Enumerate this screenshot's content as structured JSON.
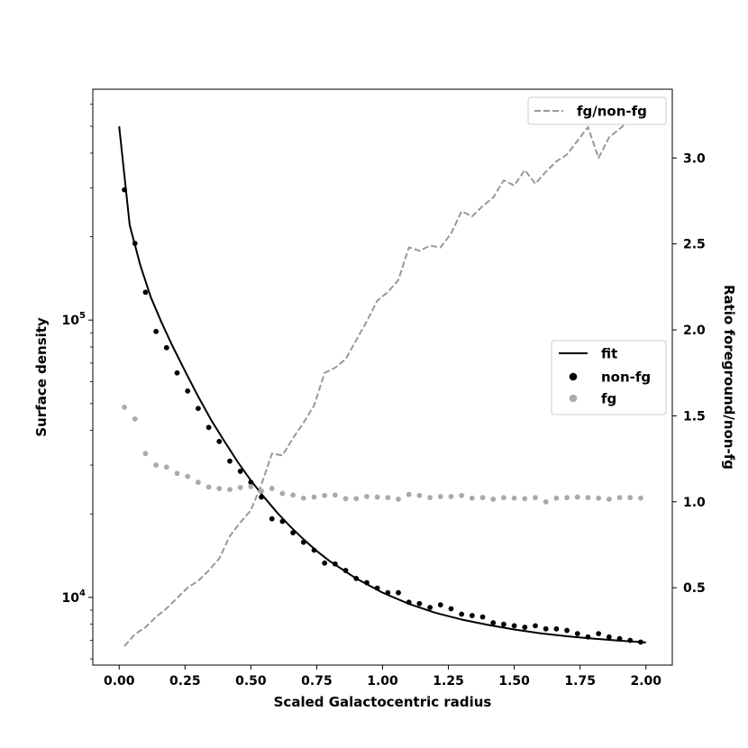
{
  "chart_data": {
    "type": "scatter",
    "xlabel": "Scaled Galactocentric radius",
    "ylabel": "Surface density",
    "y2label": "Ratio foreground/non-fg",
    "yscale": "log",
    "xlim": [
      -0.1,
      2.1
    ],
    "ylim": [
      5700,
      680000
    ],
    "y2lim": [
      0.05,
      3.4
    ],
    "x_ticks": [
      {
        "value": 0.0,
        "label": "0.00"
      },
      {
        "value": 0.25,
        "label": "0.25"
      },
      {
        "value": 0.5,
        "label": "0.50"
      },
      {
        "value": 0.75,
        "label": "0.75"
      },
      {
        "value": 1.0,
        "label": "1.00"
      },
      {
        "value": 1.25,
        "label": "1.25"
      },
      {
        "value": 1.5,
        "label": "1.50"
      },
      {
        "value": 1.75,
        "label": "1.75"
      },
      {
        "value": 2.0,
        "label": "2.00"
      }
    ],
    "y_ticks": [
      {
        "value": 10000,
        "base": "10",
        "exp": "4"
      },
      {
        "value": 100000,
        "base": "10",
        "exp": "5"
      }
    ],
    "y2_ticks": [
      {
        "value": 0.5,
        "label": "0.5"
      },
      {
        "value": 1.0,
        "label": "1.0"
      },
      {
        "value": 1.5,
        "label": "1.5"
      },
      {
        "value": 2.0,
        "label": "2.0"
      },
      {
        "value": 2.5,
        "label": "2.5"
      },
      {
        "value": 3.0,
        "label": "3.0"
      }
    ],
    "legend_main": {
      "placement": "center-right",
      "entries": [
        {
          "label": "fit",
          "kind": "line",
          "color": "#000000"
        },
        {
          "label": "non-fg",
          "kind": "dot",
          "color": "#000000"
        },
        {
          "label": "fg",
          "kind": "dot",
          "color": "#aaaaaa"
        }
      ]
    },
    "legend_ratio": {
      "placement": "top-right",
      "entries": [
        {
          "label": "fg/non-fg",
          "kind": "dashed",
          "color": "#999999"
        }
      ]
    },
    "series": [
      {
        "name": "fit",
        "kind": "line",
        "axis": "left",
        "color": "#000000",
        "x": [
          0.0,
          0.04,
          0.08,
          0.12,
          0.16,
          0.2,
          0.25,
          0.3,
          0.35,
          0.4,
          0.45,
          0.5,
          0.55,
          0.6,
          0.65,
          0.7,
          0.75,
          0.8,
          0.9,
          1.0,
          1.1,
          1.2,
          1.3,
          1.4,
          1.5,
          1.6,
          1.7,
          1.8,
          1.9,
          2.0
        ],
        "y": [
          500000,
          220000,
          158000,
          121000,
          98500,
          81500,
          65500,
          53000,
          43500,
          36500,
          30800,
          26400,
          23000,
          20200,
          18000,
          16200,
          14700,
          13500,
          11700,
          10400,
          9480,
          8800,
          8320,
          7960,
          7660,
          7420,
          7240,
          7100,
          6980,
          6880
        ]
      },
      {
        "name": "non-fg",
        "kind": "dots",
        "axis": "left",
        "color": "#000000",
        "x": [
          0.02,
          0.06,
          0.1,
          0.14,
          0.18,
          0.22,
          0.26,
          0.3,
          0.34,
          0.38,
          0.42,
          0.46,
          0.5,
          0.54,
          0.58,
          0.62,
          0.66,
          0.7,
          0.74,
          0.78,
          0.82,
          0.86,
          0.9,
          0.94,
          0.98,
          1.02,
          1.06,
          1.1,
          1.14,
          1.18,
          1.22,
          1.26,
          1.3,
          1.34,
          1.38,
          1.42,
          1.46,
          1.5,
          1.54,
          1.58,
          1.62,
          1.66,
          1.7,
          1.74,
          1.78,
          1.82,
          1.86,
          1.9,
          1.94,
          1.98
        ],
        "y": [
          295000,
          189000,
          126000,
          91000,
          79500,
          64500,
          55500,
          48000,
          41000,
          36500,
          31000,
          28500,
          26000,
          23000,
          19200,
          18800,
          17100,
          15800,
          14800,
          13300,
          13200,
          12500,
          11700,
          11300,
          10800,
          10400,
          10400,
          9600,
          9500,
          9200,
          9400,
          9100,
          8700,
          8600,
          8500,
          8100,
          8000,
          7900,
          7800,
          7900,
          7700,
          7700,
          7600,
          7400,
          7200,
          7400,
          7200,
          7100,
          7000,
          6900
        ]
      },
      {
        "name": "fg",
        "kind": "dots",
        "axis": "left",
        "color": "#aaaaaa",
        "x": [
          0.02,
          0.06,
          0.1,
          0.14,
          0.18,
          0.22,
          0.26,
          0.3,
          0.34,
          0.38,
          0.42,
          0.46,
          0.5,
          0.54,
          0.58,
          0.62,
          0.66,
          0.7,
          0.74,
          0.78,
          0.82,
          0.86,
          0.9,
          0.94,
          0.98,
          1.02,
          1.06,
          1.1,
          1.14,
          1.18,
          1.22,
          1.26,
          1.3,
          1.34,
          1.38,
          1.42,
          1.46,
          1.5,
          1.54,
          1.58,
          1.62,
          1.66,
          1.7,
          1.74,
          1.78,
          1.82,
          1.86,
          1.9,
          1.94,
          1.98
        ],
        "y": [
          48500,
          44000,
          33000,
          30000,
          29500,
          28000,
          27300,
          26000,
          25000,
          24700,
          24500,
          24900,
          25100,
          24200,
          24700,
          23700,
          23400,
          22800,
          23000,
          23300,
          23400,
          22700,
          22700,
          23100,
          23000,
          22900,
          22600,
          23500,
          23300,
          22900,
          23100,
          23100,
          23300,
          22800,
          22900,
          22600,
          22900,
          22800,
          22700,
          22900,
          22100,
          22800,
          22900,
          23000,
          22900,
          22800,
          22600,
          22900,
          22900,
          22800
        ]
      },
      {
        "name": "fg/non-fg",
        "kind": "dashed",
        "axis": "right",
        "color": "#999999",
        "x": [
          0.02,
          0.06,
          0.1,
          0.14,
          0.18,
          0.22,
          0.26,
          0.3,
          0.34,
          0.38,
          0.42,
          0.46,
          0.5,
          0.54,
          0.58,
          0.62,
          0.66,
          0.7,
          0.74,
          0.78,
          0.82,
          0.86,
          0.9,
          0.94,
          0.98,
          1.02,
          1.06,
          1.1,
          1.14,
          1.18,
          1.22,
          1.26,
          1.3,
          1.34,
          1.38,
          1.42,
          1.46,
          1.5,
          1.54,
          1.58,
          1.62,
          1.66,
          1.7,
          1.74,
          1.78,
          1.82,
          1.86,
          1.9,
          1.94,
          1.98
        ],
        "y": [
          0.16,
          0.23,
          0.27,
          0.33,
          0.38,
          0.44,
          0.5,
          0.54,
          0.6,
          0.67,
          0.8,
          0.88,
          0.95,
          1.1,
          1.28,
          1.27,
          1.37,
          1.46,
          1.56,
          1.75,
          1.78,
          1.83,
          1.94,
          2.05,
          2.17,
          2.22,
          2.29,
          2.48,
          2.46,
          2.49,
          2.48,
          2.56,
          2.69,
          2.66,
          2.72,
          2.77,
          2.87,
          2.84,
          2.93,
          2.85,
          2.92,
          2.98,
          3.02,
          3.1,
          3.18,
          3.0,
          3.12,
          3.17,
          3.22,
          3.28
        ]
      }
    ]
  }
}
